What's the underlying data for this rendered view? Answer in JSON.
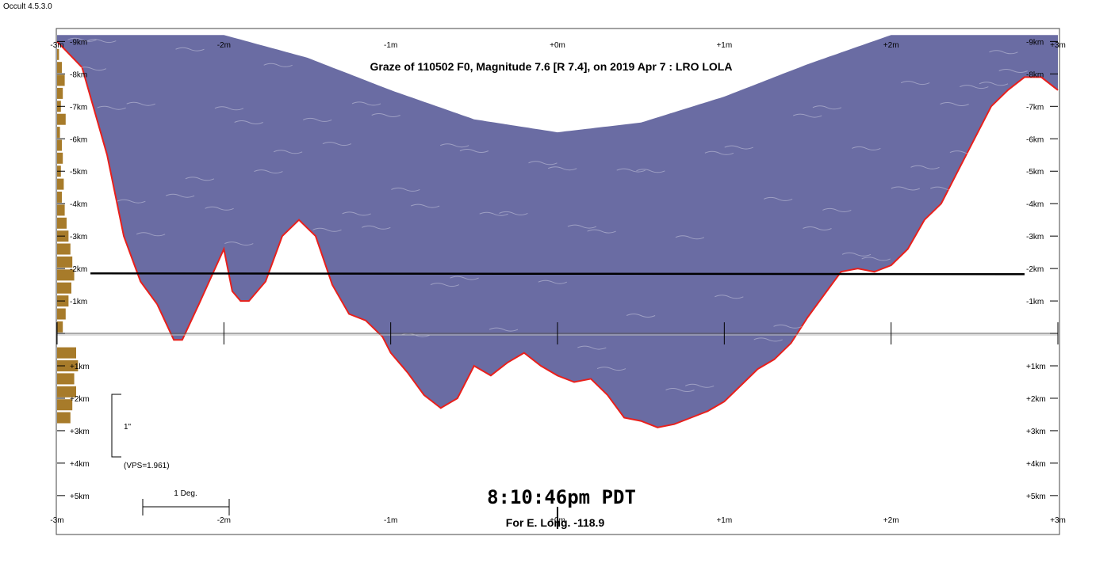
{
  "app": {
    "title": "Occult 4.5.3.0"
  },
  "chart_data": {
    "type": "area",
    "title": "Graze of  110502 F0,  Magnitude 7.6 [R 7.4],  on 2019 Apr  7  :  LRO LOLA",
    "x_tick_labels": [
      "-3m",
      "-2m",
      "-1m",
      "+0m",
      "+1m",
      "+2m",
      "+3m"
    ],
    "x_ticks": [
      -3,
      -2,
      -1,
      0,
      1,
      2,
      3
    ],
    "xlim": [
      -3,
      3
    ],
    "y_ticks": [
      -9,
      -8,
      -7,
      -6,
      -5,
      -4,
      -3,
      -2,
      -1,
      0,
      1,
      2,
      3,
      4,
      5
    ],
    "y_tick_labels": [
      "-9km",
      "-8km",
      "-7km",
      "-6km",
      "-5km",
      "-4km",
      "-3km",
      "-2km",
      "-1km",
      "",
      "+1km",
      "+2km",
      "+3km",
      "+4km",
      "+5km"
    ],
    "ylim": [
      -9.4,
      6.2
    ],
    "observer_path_km": -1.85,
    "limb_profile": {
      "x": [
        -3.0,
        -2.85,
        -2.7,
        -2.6,
        -2.5,
        -2.4,
        -2.3,
        -2.25,
        -2.15,
        -2.0,
        -1.95,
        -1.9,
        -1.85,
        -1.75,
        -1.65,
        -1.55,
        -1.45,
        -1.35,
        -1.25,
        -1.15,
        -1.05,
        -1.0,
        -0.9,
        -0.8,
        -0.7,
        -0.6,
        -0.5,
        -0.4,
        -0.3,
        -0.2,
        -0.1,
        0.0,
        0.1,
        0.2,
        0.3,
        0.4,
        0.5,
        0.6,
        0.7,
        0.8,
        0.9,
        1.0,
        1.1,
        1.2,
        1.3,
        1.4,
        1.5,
        1.6,
        1.7,
        1.8,
        1.9,
        2.0,
        2.1,
        2.2,
        2.3,
        2.4,
        2.5,
        2.6,
        2.7,
        2.8,
        2.9,
        3.0
      ],
      "y": [
        -9.0,
        -8.2,
        -5.5,
        -3.0,
        -1.6,
        -0.9,
        0.2,
        0.2,
        -0.9,
        -2.6,
        -1.3,
        -1.0,
        -1.0,
        -1.6,
        -3.0,
        -3.5,
        -3.0,
        -1.5,
        -0.6,
        -0.4,
        0.1,
        0.6,
        1.2,
        1.9,
        2.3,
        2.0,
        1.0,
        1.3,
        0.9,
        0.6,
        1.0,
        1.3,
        1.5,
        1.4,
        1.9,
        2.6,
        2.7,
        2.9,
        2.8,
        2.6,
        2.4,
        2.1,
        1.6,
        1.1,
        0.8,
        0.3,
        -0.5,
        -1.2,
        -1.9,
        -2.0,
        -1.9,
        -2.1,
        -2.6,
        -3.5,
        -4.0,
        -5.0,
        -6.0,
        -7.0,
        -7.5,
        -7.9,
        -7.9,
        -7.5
      ]
    },
    "upper_envelope": {
      "x": [
        -3.0,
        -2.5,
        -2.0,
        -1.5,
        -1.0,
        -0.5,
        0.0,
        0.5,
        1.0,
        1.5,
        2.0,
        2.5,
        3.0
      ],
      "y": [
        -9.2,
        -9.2,
        -9.2,
        -8.5,
        -7.5,
        -6.6,
        -6.2,
        -6.5,
        -7.3,
        -8.3,
        -9.2,
        -9.2,
        -9.2
      ]
    },
    "colors": {
      "fill": "#6a6ca3",
      "limb": "#e8201c",
      "histogram": "#a77b2a",
      "path": "#000000"
    },
    "annotations": {
      "scale_arcsec": "1\"",
      "vps": "(VPS=1.961)",
      "deg_scale": "1 Deg.",
      "time": "8:10:46pm PDT",
      "longitude": "For E. Long. -118.9"
    },
    "histogram": {
      "y": [
        -8.6,
        -8.2,
        -7.8,
        -7.4,
        -7.0,
        -6.6,
        -6.2,
        -5.8,
        -5.4,
        -5.0,
        -4.6,
        -4.2,
        -3.8,
        -3.4,
        -3.0,
        -2.6,
        -2.2,
        -1.8,
        -1.4,
        -1.0,
        -0.6,
        -0.2,
        0.6,
        1.0,
        1.4,
        1.8,
        2.2,
        2.6
      ],
      "counts": [
        2,
        5,
        8,
        6,
        4,
        9,
        3,
        5,
        6,
        4,
        7,
        5,
        8,
        10,
        12,
        14,
        16,
        18,
        15,
        12,
        9,
        6,
        20,
        22,
        18,
        20,
        16,
        14
      ]
    }
  }
}
